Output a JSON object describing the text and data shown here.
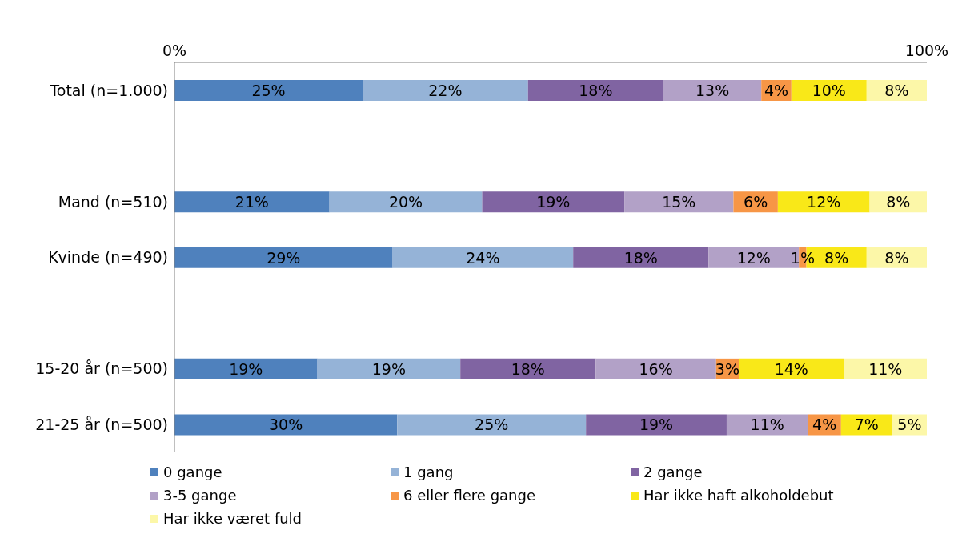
{
  "chart_data": {
    "type": "bar",
    "orientation": "horizontal",
    "stacked": true,
    "categories": [
      "Total (n=1.000)",
      null,
      "Mand (n=510)",
      "Kvinde (n=490)",
      null,
      "15-20 år (n=500)",
      "21-25 år (n=500)"
    ],
    "xlim": [
      0,
      100
    ],
    "xticks": [
      {
        "value": 0,
        "label": "0%"
      },
      {
        "value": 100,
        "label": "100%"
      }
    ],
    "legend": "bottom",
    "series": [
      {
        "name": "0 gange",
        "color": "#4f81bd",
        "values": [
          25,
          null,
          20.6,
          29,
          null,
          19,
          29.6
        ],
        "value_labels": [
          "25%",
          null,
          "21%",
          "29%",
          null,
          "19%",
          "30%"
        ]
      },
      {
        "name": "1 gang",
        "color": "#95b3d7",
        "values": [
          22,
          null,
          20.3,
          24,
          null,
          19,
          25.1
        ],
        "value_labels": [
          "22%",
          null,
          "20%",
          "24%",
          null,
          "19%",
          "25%"
        ]
      },
      {
        "name": "2 gange",
        "color": "#8064a2",
        "values": [
          18,
          null,
          18.9,
          18,
          null,
          18,
          18.7
        ],
        "value_labels": [
          "18%",
          null,
          "19%",
          "18%",
          null,
          "18%",
          "19%"
        ]
      },
      {
        "name": "3-5 gange",
        "color": "#b2a1c7",
        "values": [
          13,
          null,
          14.5,
          12,
          null,
          16,
          10.8
        ],
        "value_labels": [
          "13%",
          null,
          "15%",
          "12%",
          null,
          "16%",
          "11%"
        ]
      },
      {
        "name": "6 eller flere gange",
        "color": "#f79646",
        "values": [
          4,
          null,
          5.9,
          1,
          null,
          3,
          4.4
        ],
        "value_labels": [
          "4%",
          null,
          "6%",
          "1%",
          null,
          "3%",
          "4%"
        ]
      },
      {
        "name": "Har ikke haft alkoholdebut",
        "color": "#f9e818",
        "values": [
          10,
          null,
          12.2,
          8,
          null,
          14,
          6.8
        ],
        "value_labels": [
          "10%",
          null,
          "12%",
          "8%",
          null,
          "14%",
          "7%"
        ]
      },
      {
        "name": "Har ikke været fuld",
        "color": "#fcf7a8",
        "values": [
          8,
          null,
          7.6,
          8,
          null,
          11,
          4.6
        ],
        "value_labels": [
          "8%",
          null,
          "8%",
          "8%",
          null,
          "11%",
          "5%"
        ]
      }
    ]
  }
}
